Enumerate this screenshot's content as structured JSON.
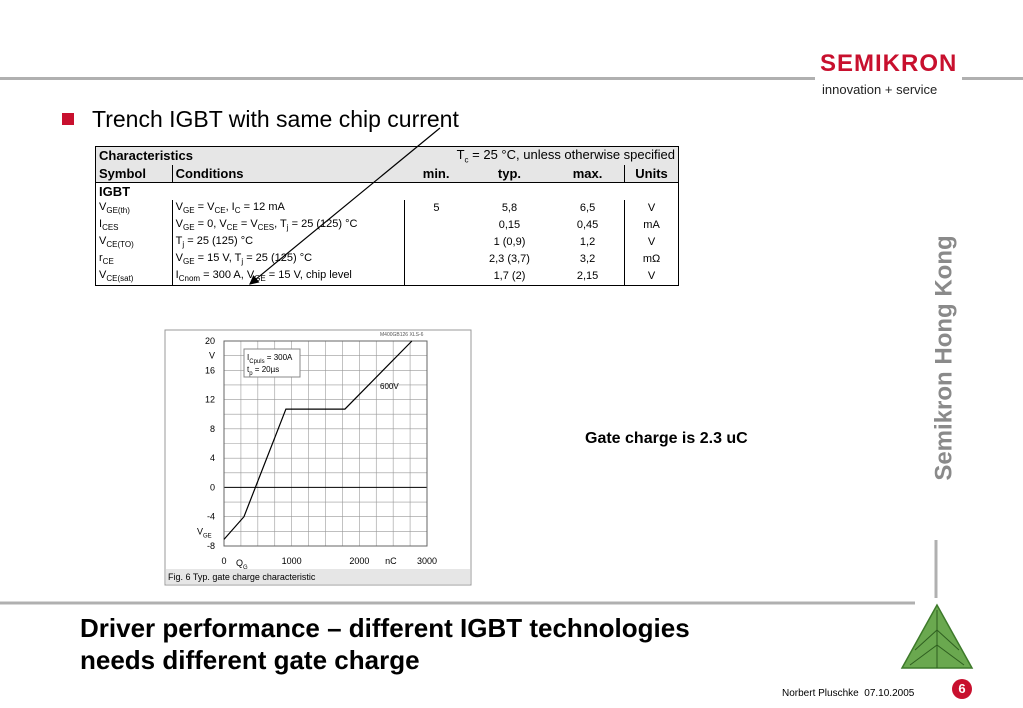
{
  "logo": {
    "name": "SEMIKRON",
    "tagline": "innovation + service"
  },
  "bullet": "Trench IGBT with same chip current",
  "table": {
    "title": "Characteristics",
    "condition": [
      "T",
      "c",
      " = 25 °C, unless otherwise specified"
    ],
    "headers": [
      "Symbol",
      "Conditions",
      "min.",
      "typ.",
      "max.",
      "Units"
    ],
    "section": "IGBT",
    "rows": [
      [
        [
          "V",
          "GE(th)"
        ],
        [
          "V",
          "GE",
          " = V",
          "CE",
          ", I",
          "C",
          " = 12 mA"
        ],
        "5",
        "5,8",
        "6,5",
        "V"
      ],
      [
        [
          "I",
          "CES"
        ],
        [
          "V",
          "GE",
          " = 0, V",
          "CE",
          " = V",
          "CES",
          ", T",
          "j",
          " = 25 (125) °C"
        ],
        null,
        "0,15",
        "0,45",
        "mA"
      ],
      [
        [
          "V",
          "CE(TO)"
        ],
        [
          "T",
          "j",
          " = 25 (125) °C"
        ],
        null,
        "1 (0,9)",
        "1,2",
        "V"
      ],
      [
        [
          "r",
          "CE"
        ],
        [
          "V",
          "GE",
          " = 15 V, T",
          "j",
          " = 25 (125) °C"
        ],
        null,
        "2,3 (3,7)",
        "3,2",
        "mΩ"
      ],
      [
        [
          "V",
          "CE(sat)"
        ],
        [
          "I",
          "Cnom",
          " = 300 A, V",
          "GE",
          " = 15 V, chip level"
        ],
        null,
        "1,7 (2)",
        "2,15",
        "V"
      ]
    ]
  },
  "chart_data": {
    "type": "line",
    "code": "M400GB126 XLS-6",
    "caption": "Fig. 6 Typ. gate charge characteristic",
    "x_label": [
      "Q",
      "G"
    ],
    "x_unit": "nC",
    "y_unit": "V",
    "y_label": [
      "V",
      "GE"
    ],
    "annotations": [
      [
        "I",
        "Cpuls",
        " = 300A"
      ],
      [
        "t",
        "p",
        " = 20µs"
      ],
      "600V"
    ],
    "xlim": [
      0,
      3000
    ],
    "xticks": [
      0,
      1000,
      2000,
      3000
    ],
    "ylim": [
      -8,
      20
    ],
    "yticks": [
      -8,
      -4,
      0,
      4,
      8,
      12,
      16,
      20
    ],
    "grid": true,
    "series": [
      {
        "color": "#000000",
        "x": [
          0,
          295,
          915,
          1787,
          2777
        ],
        "values": [
          -7.1,
          -4,
          10.7,
          10.7,
          20
        ]
      }
    ]
  },
  "note": "Gate charge is 2.3 uC",
  "sidebar": "Semikron Hong Kong",
  "title": [
    "Driver performance – different IGBT technologies",
    "needs different gate charge"
  ],
  "footer": {
    "author": "Norbert Pluschke",
    "date": "07.10.2005",
    "page": "6"
  }
}
